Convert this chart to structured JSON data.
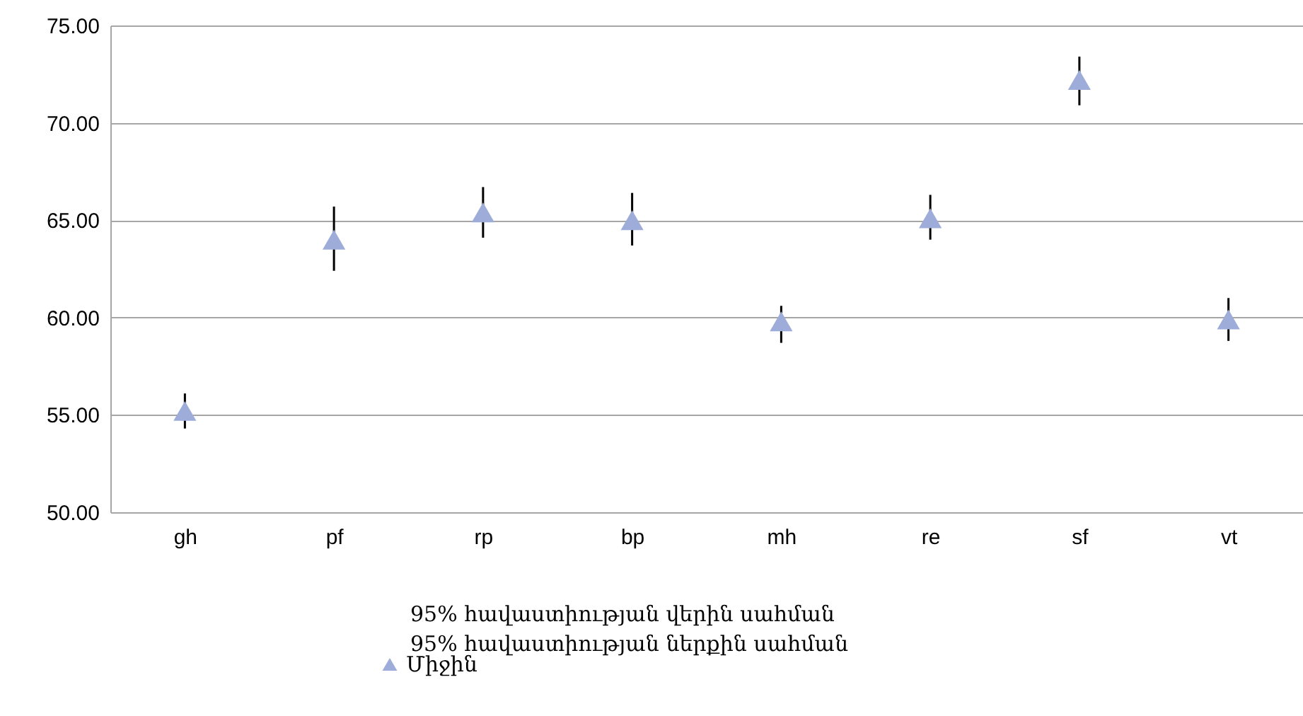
{
  "chart_data": {
    "type": "scatter",
    "categories": [
      "gh",
      "pf",
      "rp",
      "bp",
      "mh",
      "re",
      "sf",
      "vt"
    ],
    "series": [
      {
        "name": "Միջին",
        "color": "#9dacd8",
        "values": [
          55.2,
          64.0,
          65.4,
          65.0,
          59.8,
          65.1,
          72.2,
          59.9
        ],
        "errors": [
          [
            54.3,
            56.1
          ],
          [
            62.4,
            65.7
          ],
          [
            64.1,
            66.7
          ],
          [
            63.7,
            66.4
          ],
          [
            58.7,
            60.6
          ],
          [
            64.0,
            66.3
          ],
          [
            70.9,
            73.4
          ],
          [
            58.8,
            61.0
          ]
        ]
      }
    ],
    "ylim": [
      50,
      75
    ],
    "yticks": [
      {
        "value": 50,
        "label": "50.00"
      },
      {
        "value": 55,
        "label": "55.00"
      },
      {
        "value": 60,
        "label": "60.00"
      },
      {
        "value": 65,
        "label": "65.00"
      },
      {
        "value": 70,
        "label": "70.00"
      },
      {
        "value": 75,
        "label": "75.00"
      }
    ],
    "grid": "y",
    "legend": "bottom",
    "marker": "triangle",
    "annotations": [
      "95% հավաստիության վերին սահման",
      "95% հավաստիության ներքին սահման"
    ]
  }
}
